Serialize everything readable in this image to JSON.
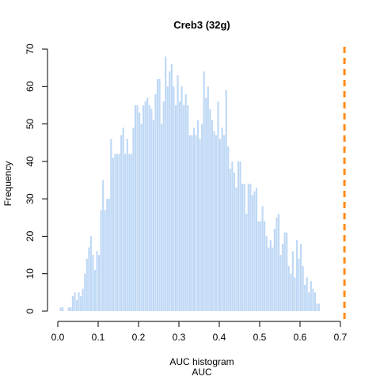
{
  "chart_data": {
    "type": "bar",
    "title": "Creb3 (32g)",
    "xlabel": "AUC histogram",
    "xlabel2": "AUC",
    "ylabel": "Frequency",
    "bin_width": 0.005,
    "bin_start": 0.0,
    "xlim": [
      0.0,
      0.7
    ],
    "ylim": [
      0,
      70
    ],
    "x_ticks": [
      "0.0",
      "0.1",
      "0.2",
      "0.3",
      "0.4",
      "0.5",
      "0.6",
      "0.7"
    ],
    "y_ticks": [
      "0",
      "10",
      "20",
      "30",
      "40",
      "50",
      "60",
      "70"
    ],
    "values": [
      0,
      1,
      1,
      0,
      0,
      1,
      1,
      4,
      5,
      3,
      5,
      4,
      6,
      10,
      14,
      17,
      20,
      15,
      11,
      16,
      15,
      27,
      35,
      27,
      30,
      30,
      46,
      41,
      42,
      42,
      42,
      47,
      49,
      42,
      46,
      42,
      42,
      49,
      55,
      55,
      53,
      50,
      55,
      56,
      57,
      55,
      54,
      51,
      58,
      62,
      62,
      50,
      56,
      68,
      60,
      64,
      66,
      60,
      55,
      63,
      56,
      60,
      55,
      58,
      55,
      47,
      47,
      49,
      47,
      51,
      46,
      50,
      64,
      57,
      60,
      54,
      51,
      48,
      47,
      56,
      46,
      49,
      47,
      59,
      44,
      38,
      40,
      37,
      33,
      40,
      40,
      34,
      34,
      26,
      34,
      34,
      31,
      32,
      33,
      24,
      24,
      28,
      24,
      20,
      17,
      19,
      17,
      22,
      25,
      26,
      15,
      18,
      21,
      21,
      12,
      10,
      16,
      9,
      19,
      14,
      18,
      12,
      7,
      9,
      5,
      8,
      6,
      5,
      2,
      2
    ],
    "bar_color": "#bed8f5",
    "reference_line": {
      "x": 0.71,
      "color": "#ff8c1a",
      "style": "dashed"
    }
  }
}
